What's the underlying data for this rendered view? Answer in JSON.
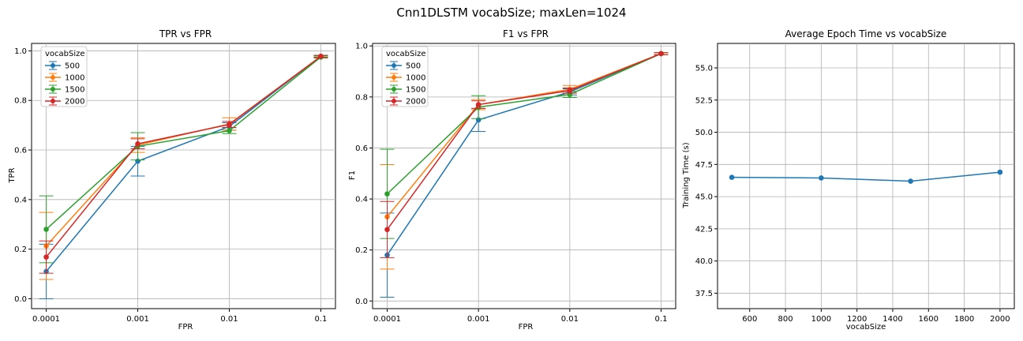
{
  "figure": {
    "title": "Cnn1DLSTM vocabSize; maxLen=1024"
  },
  "chart_data": [
    {
      "type": "line",
      "title": "TPR vs FPR",
      "xlabel": "FPR",
      "ylabel": "TPR",
      "x_scale": "log",
      "x": [
        0.0001,
        0.001,
        0.01,
        0.1
      ],
      "x_tick_labels": [
        "0.0001",
        "0.001",
        "0.01",
        "0.1"
      ],
      "ylim": [
        -0.04,
        1.03
      ],
      "y_ticks": [
        "0.0",
        "0.2",
        "0.4",
        "0.6",
        "0.8",
        "1.0"
      ],
      "grid": true,
      "legend": {
        "title": "vocabSize",
        "position": "upper-left"
      },
      "series": [
        {
          "name": "500",
          "color": "#1f77b4",
          "values": [
            0.11,
            0.555,
            0.695,
            0.978
          ],
          "errors": [
            0.11,
            0.06,
            0.015,
            0.004
          ]
        },
        {
          "name": "1000",
          "color": "#ff7f0e",
          "values": [
            0.213,
            0.62,
            0.705,
            0.978
          ],
          "errors": [
            0.135,
            0.03,
            0.025,
            0.004
          ]
        },
        {
          "name": "1500",
          "color": "#2ca02c",
          "values": [
            0.28,
            0.615,
            0.678,
            0.975
          ],
          "errors": [
            0.135,
            0.055,
            0.012,
            0.004
          ]
        },
        {
          "name": "2000",
          "color": "#d62728",
          "values": [
            0.168,
            0.625,
            0.703,
            0.978
          ],
          "errors": [
            0.065,
            0.02,
            0.012,
            0.004
          ]
        }
      ]
    },
    {
      "type": "line",
      "title": "F1 vs FPR",
      "xlabel": "FPR",
      "ylabel": "F1",
      "x_scale": "log",
      "x": [
        0.0001,
        0.001,
        0.01,
        0.1
      ],
      "x_tick_labels": [
        "0.0001",
        "0.001",
        "0.01",
        "0.1"
      ],
      "ylim": [
        -0.03,
        1.01
      ],
      "y_ticks": [
        "0.0",
        "0.2",
        "0.4",
        "0.6",
        "0.8",
        "1.0"
      ],
      "grid": true,
      "legend": {
        "title": "vocabSize",
        "position": "upper-left"
      },
      "series": [
        {
          "name": "500",
          "color": "#1f77b4",
          "values": [
            0.18,
            0.71,
            0.82,
            0.97
          ],
          "errors": [
            0.165,
            0.045,
            0.012,
            0.004
          ]
        },
        {
          "name": "1000",
          "color": "#ff7f0e",
          "values": [
            0.33,
            0.77,
            0.83,
            0.97
          ],
          "errors": [
            0.205,
            0.02,
            0.015,
            0.004
          ]
        },
        {
          "name": "1500",
          "color": "#2ca02c",
          "values": [
            0.42,
            0.76,
            0.81,
            0.97
          ],
          "errors": [
            0.175,
            0.045,
            0.012,
            0.004
          ]
        },
        {
          "name": "2000",
          "color": "#d62728",
          "values": [
            0.28,
            0.77,
            0.825,
            0.97
          ],
          "errors": [
            0.11,
            0.015,
            0.01,
            0.004
          ]
        }
      ]
    },
    {
      "type": "line",
      "title": "Average Epoch Time vs vocabSize",
      "xlabel": "vocabSize",
      "ylabel": "Training Time (s)",
      "x_scale": "linear",
      "xlim": [
        420,
        2080
      ],
      "x_ticks": [
        600,
        800,
        1000,
        1200,
        1400,
        1600,
        1800,
        2000
      ],
      "ylim": [
        36.3,
        56.9
      ],
      "y_ticks": [
        37.5,
        40.0,
        42.5,
        45.0,
        47.5,
        50.0,
        52.5,
        55.0
      ],
      "grid": true,
      "series": [
        {
          "color": "#1f77b4",
          "x": [
            500,
            1000,
            1500,
            2000
          ],
          "values": [
            46.5,
            46.45,
            46.2,
            46.9
          ]
        }
      ]
    }
  ]
}
